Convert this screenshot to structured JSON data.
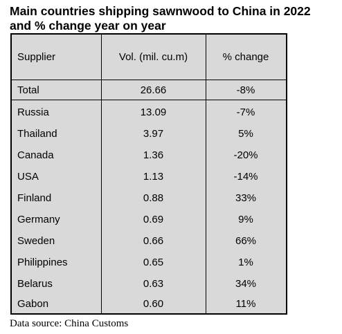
{
  "title": {
    "line1": "Main countries shipping sawnwood to China in 2022",
    "line2": "and % change year on year"
  },
  "table": {
    "headers": [
      "Supplier",
      "Vol. (mil. cu.m)",
      "% change"
    ],
    "total": {
      "supplier": "Total",
      "volume": "26.66",
      "change": "-8%"
    },
    "rows": [
      {
        "supplier": "Russia",
        "volume": "13.09",
        "change": "-7%"
      },
      {
        "supplier": "Thailand",
        "volume": "3.97",
        "change": "5%"
      },
      {
        "supplier": "Canada",
        "volume": "1.36",
        "change": "-20%"
      },
      {
        "supplier": "USA",
        "volume": "1.13",
        "change": "-14%"
      },
      {
        "supplier": "Finland",
        "volume": "0.88",
        "change": "33%"
      },
      {
        "supplier": "Germany",
        "volume": "0.69",
        "change": "9%"
      },
      {
        "supplier": "Sweden",
        "volume": "0.66",
        "change": "66%"
      },
      {
        "supplier": "Philippines",
        "volume": "0.65",
        "change": "1%"
      },
      {
        "supplier": "Belarus",
        "volume": "0.63",
        "change": "34%"
      },
      {
        "supplier": "Gabon",
        "volume": "0.60",
        "change": "11%"
      }
    ]
  },
  "source": "Data source: China Customs"
}
